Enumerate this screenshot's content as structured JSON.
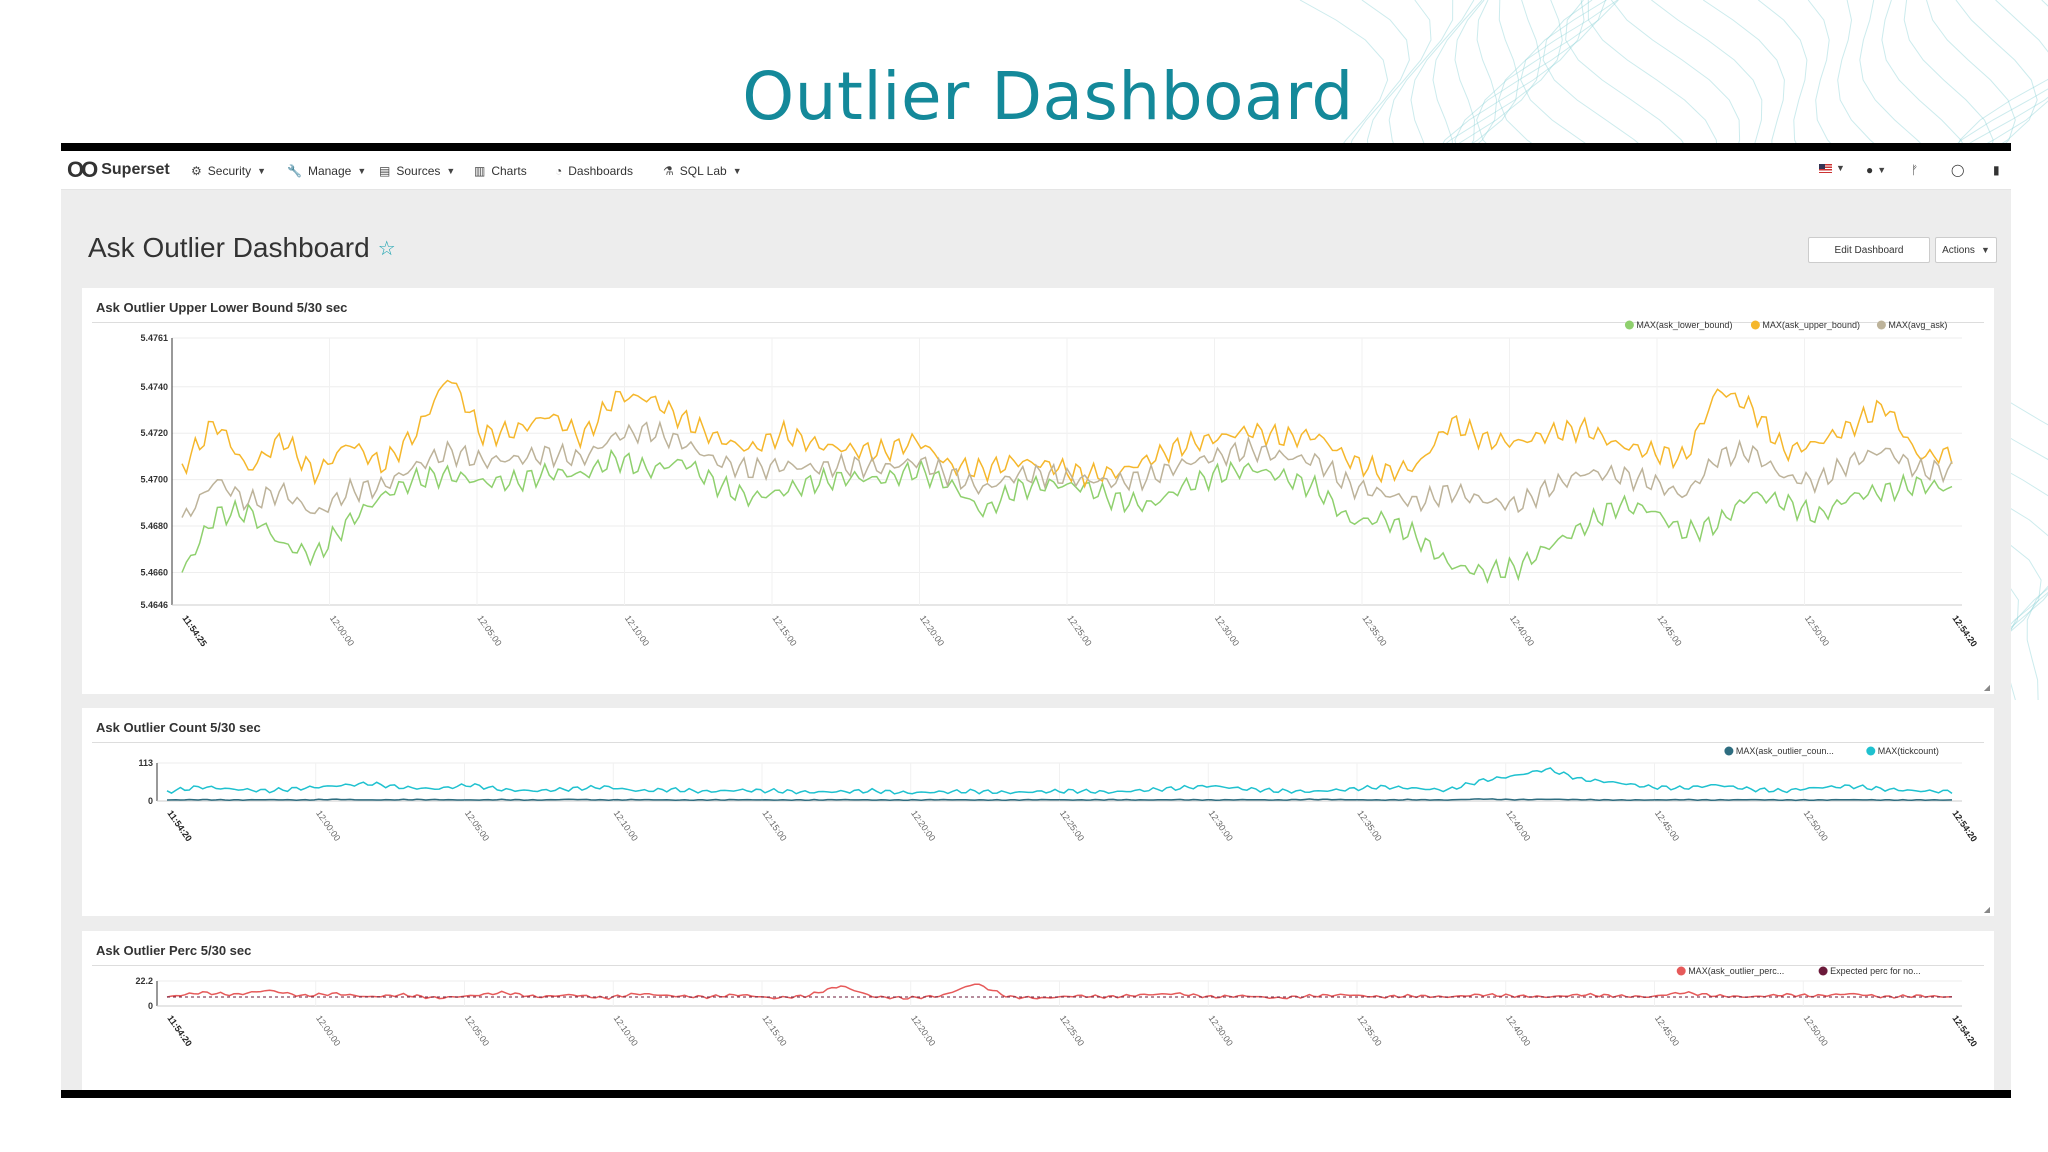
{
  "slide_title": "Outlier Dashboard",
  "navbar": {
    "brand": "Superset",
    "items": [
      {
        "label": "Security",
        "icon": "gears-icon"
      },
      {
        "label": "Manage",
        "icon": "wrench-icon"
      },
      {
        "label": "Sources",
        "icon": "database-icon"
      },
      {
        "label": "Charts",
        "icon": "bar-chart-icon"
      },
      {
        "label": "Dashboards",
        "icon": "dashboard-icon"
      },
      {
        "label": "SQL Lab",
        "icon": "flask-icon"
      }
    ],
    "right_icons": [
      "us-flag-icon",
      "user-icon",
      "git-branch-icon",
      "github-icon",
      "book-icon"
    ]
  },
  "dashboard": {
    "title": "Ask Outlier Dashboard",
    "edit_button": "Edit Dashboard",
    "actions_button": "Actions"
  },
  "colors": {
    "accent": "#14899a",
    "lower_bound": "#8fd06e",
    "upper_bound": "#f5b72c",
    "avg_ask": "#bdb39a",
    "outlier_count": "#2e6d80",
    "tickcount": "#1fc1cf",
    "outlier_perc": "#e65a5a",
    "expected_perc": "#6b1a3a"
  },
  "chart_data": [
    {
      "type": "line",
      "title": "Ask Outlier Upper Lower Bound 5/30 sec",
      "ylim": [
        5.4646,
        5.4761
      ],
      "yticks": [
        "5.4761",
        "5.4740",
        "5.4720",
        "5.4700",
        "5.4680",
        "5.4660",
        "5.4646"
      ],
      "xticks": [
        "11:54:25",
        "12:00:00",
        "12:05:00",
        "12:10:00",
        "12:15:00",
        "12:20:00",
        "12:25:00",
        "12:30:00",
        "12:35:00",
        "12:40:00",
        "12:45:00",
        "12:50:00",
        "12:54:20"
      ],
      "legend_position": "top-right",
      "series": [
        {
          "name": "MAX(ask_lower_bound)",
          "values": [
            5.466,
            5.4685,
            5.4686,
            5.4672,
            5.4667,
            5.4682,
            5.4693,
            5.47,
            5.4702,
            5.4699,
            5.4699,
            5.4703,
            5.4702,
            5.4709,
            5.4704,
            5.4708,
            5.4698,
            5.4692,
            5.4695,
            5.4699,
            5.4701,
            5.47,
            5.4704,
            5.4698,
            5.4686,
            5.4696,
            5.4698,
            5.4697,
            5.4691,
            5.4689,
            5.4697,
            5.4702,
            5.4705,
            5.4701,
            5.4696,
            5.4682,
            5.4683,
            5.4675,
            5.4663,
            5.466,
            5.4662,
            5.4672,
            5.468,
            5.4689,
            5.4687,
            5.4677,
            5.4681,
            5.4694,
            5.469,
            5.4684,
            5.4693,
            5.4695,
            5.4698,
            5.4696
          ]
        },
        {
          "name": "MAX(ask_upper_bound)",
          "values": [
            5.4705,
            5.4725,
            5.4704,
            5.4718,
            5.4702,
            5.4716,
            5.4706,
            5.472,
            5.4745,
            5.4719,
            5.4721,
            5.4728,
            5.4718,
            5.4736,
            5.4735,
            5.4726,
            5.4718,
            5.4713,
            5.472,
            5.4715,
            5.4713,
            5.4712,
            5.4717,
            5.4706,
            5.4704,
            5.4708,
            5.4706,
            5.4702,
            5.4703,
            5.4709,
            5.4715,
            5.4718,
            5.4721,
            5.4718,
            5.4719,
            5.4708,
            5.4703,
            5.4706,
            5.4725,
            5.4717,
            5.4716,
            5.472,
            5.4722,
            5.4715,
            5.4712,
            5.4709,
            5.4739,
            5.4731,
            5.4712,
            5.4716,
            5.4723,
            5.4732,
            5.471,
            5.4711
          ]
        },
        {
          "name": "MAX(avg_ask)",
          "values": [
            5.4682,
            5.47,
            5.469,
            5.4695,
            5.4685,
            5.4695,
            5.4697,
            5.4706,
            5.4712,
            5.4708,
            5.4709,
            5.4711,
            5.4709,
            5.4719,
            5.4721,
            5.4716,
            5.4708,
            5.4704,
            5.4706,
            5.4705,
            5.4706,
            5.4705,
            5.4708,
            5.4702,
            5.4696,
            5.4702,
            5.4702,
            5.47,
            5.4699,
            5.4701,
            5.4707,
            5.471,
            5.4713,
            5.471,
            5.4708,
            5.4697,
            5.4694,
            5.469,
            5.4695,
            5.4691,
            5.4689,
            5.4697,
            5.4703,
            5.4702,
            5.4699,
            5.4693,
            5.471,
            5.4712,
            5.4701,
            5.4699,
            5.4708,
            5.4713,
            5.4704,
            5.4704
          ]
        }
      ]
    },
    {
      "type": "line",
      "title": "Ask Outlier Count 5/30 sec",
      "ylim": [
        0,
        113
      ],
      "yticks": [
        "113",
        "0"
      ],
      "xticks": [
        "11:54:20",
        "12:00:00",
        "12:05:00",
        "12:10:00",
        "12:15:00",
        "12:20:00",
        "12:25:00",
        "12:30:00",
        "12:35:00",
        "12:40:00",
        "12:45:00",
        "12:50:00",
        "12:54:20"
      ],
      "legend_position": "top-right",
      "series": [
        {
          "name": "MAX(ask_outlier_coun...",
          "values": [
            3,
            4,
            3,
            4,
            3,
            5,
            3,
            4,
            4,
            3,
            4,
            3,
            5,
            3,
            4,
            3,
            3,
            4,
            3,
            3,
            4,
            3,
            3,
            4,
            3,
            3,
            4,
            3,
            4,
            3,
            4,
            3,
            4,
            3,
            5,
            4,
            3,
            4,
            3,
            6,
            4,
            5,
            4,
            3,
            3,
            4,
            3,
            4,
            3,
            3,
            4,
            3,
            3,
            3
          ]
        },
        {
          "name": "MAX(tickcount)",
          "values": [
            28,
            42,
            35,
            30,
            38,
            45,
            52,
            40,
            36,
            48,
            33,
            30,
            36,
            42,
            30,
            34,
            28,
            32,
            30,
            26,
            28,
            30,
            24,
            27,
            29,
            25,
            28,
            30,
            26,
            32,
            38,
            45,
            36,
            30,
            28,
            34,
            42,
            38,
            32,
            60,
            75,
            95,
            64,
            55,
            42,
            38,
            48,
            35,
            30,
            40,
            44,
            35,
            30,
            28
          ]
        }
      ]
    },
    {
      "type": "line",
      "title": "Ask Outlier Perc 5/30 sec",
      "ylim": [
        0,
        22.2
      ],
      "yticks": [
        "22.2",
        "0"
      ],
      "xticks": [
        "11:54:20",
        "12:00:00",
        "12:05:00",
        "12:10:00",
        "12:15:00",
        "12:20:00",
        "12:25:00",
        "12:30:00",
        "12:35:00",
        "12:40:00",
        "12:45:00",
        "12:50:00",
        "12:54:20"
      ],
      "legend_position": "top-right",
      "series": [
        {
          "name": "MAX(ask_outlier_perc...",
          "values": [
            8,
            12,
            10,
            14,
            9,
            11,
            8,
            10,
            7,
            9,
            12,
            8,
            10,
            7,
            11,
            9,
            8,
            10,
            7,
            9,
            18,
            8,
            7,
            9,
            20,
            8,
            7,
            9,
            8,
            10,
            11,
            8,
            9,
            7,
            9,
            10,
            8,
            9,
            8,
            10,
            9,
            8,
            10,
            9,
            8,
            12,
            9,
            8,
            10,
            9,
            11,
            8,
            9,
            8
          ]
        },
        {
          "name": "Expected perc for no...",
          "values": [
            8,
            8,
            8,
            8,
            8,
            8,
            8,
            8,
            8,
            8,
            8,
            8,
            8,
            8,
            8,
            8,
            8,
            8,
            8,
            8,
            8,
            8,
            8,
            8,
            8,
            8,
            8,
            8,
            8,
            8,
            8,
            8,
            8,
            8,
            8,
            8,
            8,
            8,
            8,
            8,
            8,
            8,
            8,
            8,
            8,
            8,
            8,
            8,
            8,
            8,
            8,
            8,
            8,
            8
          ]
        }
      ]
    }
  ]
}
